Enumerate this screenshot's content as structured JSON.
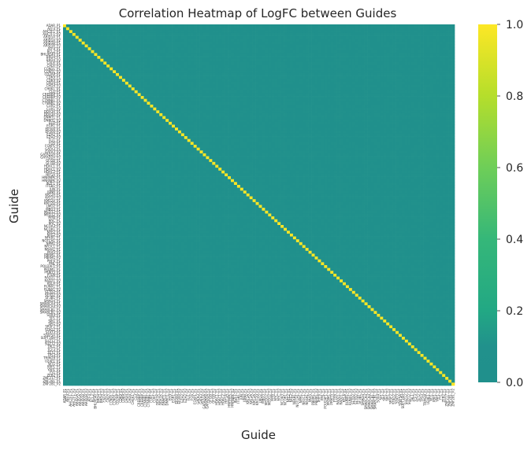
{
  "chart_data": {
    "type": "heatmap",
    "title": "Correlation Heatmap of LogFC between Guides",
    "xlabel": "Guide",
    "ylabel": "Guide",
    "colormap": "viridis (center ~0)",
    "value_range": [
      0.0,
      1.0
    ],
    "colorbar_ticks": [
      "0.0",
      "0.2",
      "0.4",
      "0.6",
      "0.8",
      "1.0"
    ],
    "off_diagonal_typical_value": 0.05,
    "off_diagonal_range": [
      0.0,
      0.12
    ],
    "diagonal_value": 1.0,
    "categories": [
      "ADAR_P1",
      "AFF4_P1",
      "AHCTF1_P1",
      "AHCTF1_P2",
      "ARID1A_P1",
      "ARID1A_P2",
      "ARID1B_P1",
      "ARID1B_P2",
      "ATF4_P1",
      "BCL2_P1",
      "BHLHE40_P1",
      "BRD4_P1",
      "BRD4_P2",
      "CALR_P1",
      "CALR_P2",
      "CCND1_P1",
      "CCND1_P2",
      "CD2AP_P1",
      "CDK9_P1",
      "CDK9_P2",
      "CHD4_P1",
      "CHD4_P2",
      "CHEK1_P1",
      "CLU_P1",
      "CREBBP_P1",
      "CREBBP_P2",
      "CTNNB1_P1",
      "CTNNB1_P2",
      "CUX1_P1",
      "CUX1_P2",
      "DDX3X_P1",
      "DDX3X_P2",
      "DNMT1_P1",
      "DNMT1_P2",
      "EED_P1",
      "EGR1_P1",
      "EP300_P1",
      "EP300_P2",
      "EZH2_P1",
      "EZH2_P2",
      "FLI1_P1",
      "FOS_P1",
      "FOXP1_P1",
      "GATA3_P1",
      "GATA3_P2",
      "GATAD2A_P1",
      "GATAD2A_P2",
      "GFI1B_P1",
      "GFI1B_P2",
      "HDAC1_P1",
      "HDAC1_P2",
      "HDAC2_P1",
      "HIF1A_P1",
      "HNRNPK_P1",
      "HNRNPK_P2",
      "IKZF1_P1",
      "ITGB1_P1",
      "JUN_P1",
      "JUNB_P1",
      "KAT2A_P1",
      "KAT2A_P2",
      "KMT2A_P1",
      "KMT2D_P1",
      "LMO2_P1",
      "MBD3_P1",
      "MED12_P1",
      "MED12_P2",
      "MYB_P1",
      "MYC_P1",
      "MYC_P2",
      "NCOA3_P1",
      "NCOR1_P1",
      "NFE2_P1",
      "NFE2_P2",
      "NFKB1_P1",
      "NOTCH1_P1",
      "NPM1_P1",
      "NR3C1_P1",
      "NR4A1_P1",
      "PAX5_P1",
      "PBRM1_P1",
      "PBRM1_P2",
      "PHF6_P1",
      "PML_P1",
      "POU2AF1_P1",
      "PRDM1_P1",
      "PRMT5_P1",
      "PTEN_P1",
      "RAD21_P1",
      "RAD21_P2",
      "RELA_P1",
      "RUNX1_P1",
      "RUNX1_P2",
      "SETD2_P1",
      "SETD2_P2",
      "SF3B1_P1",
      "SMAD4_P1",
      "SMARCA4_P1",
      "SMARCA4_P2",
      "SMARCB1_P1",
      "SMARCB1_P2",
      "SOX4_P1",
      "SP1_P1",
      "SPI1_P1",
      "SPI1_P2",
      "SRSF2_P1",
      "STAG2_P1",
      "STAT3_P1",
      "STAT5A_P1",
      "SUPT16H_P1",
      "SUZ12_P1",
      "SUZ12_P2",
      "TAL1_P1",
      "TCF3_P1",
      "TET2_P1",
      "TP53_P1",
      "TRIM28_P1",
      "U2AF1_P1",
      "WT1_P1",
      "XBP1_P1",
      "YAP1_P1",
      "YY1_P1",
      "ZEB2_P1",
      "ZNF217_P1",
      "ZNF281_P1",
      "ZNF281_P2"
    ]
  }
}
